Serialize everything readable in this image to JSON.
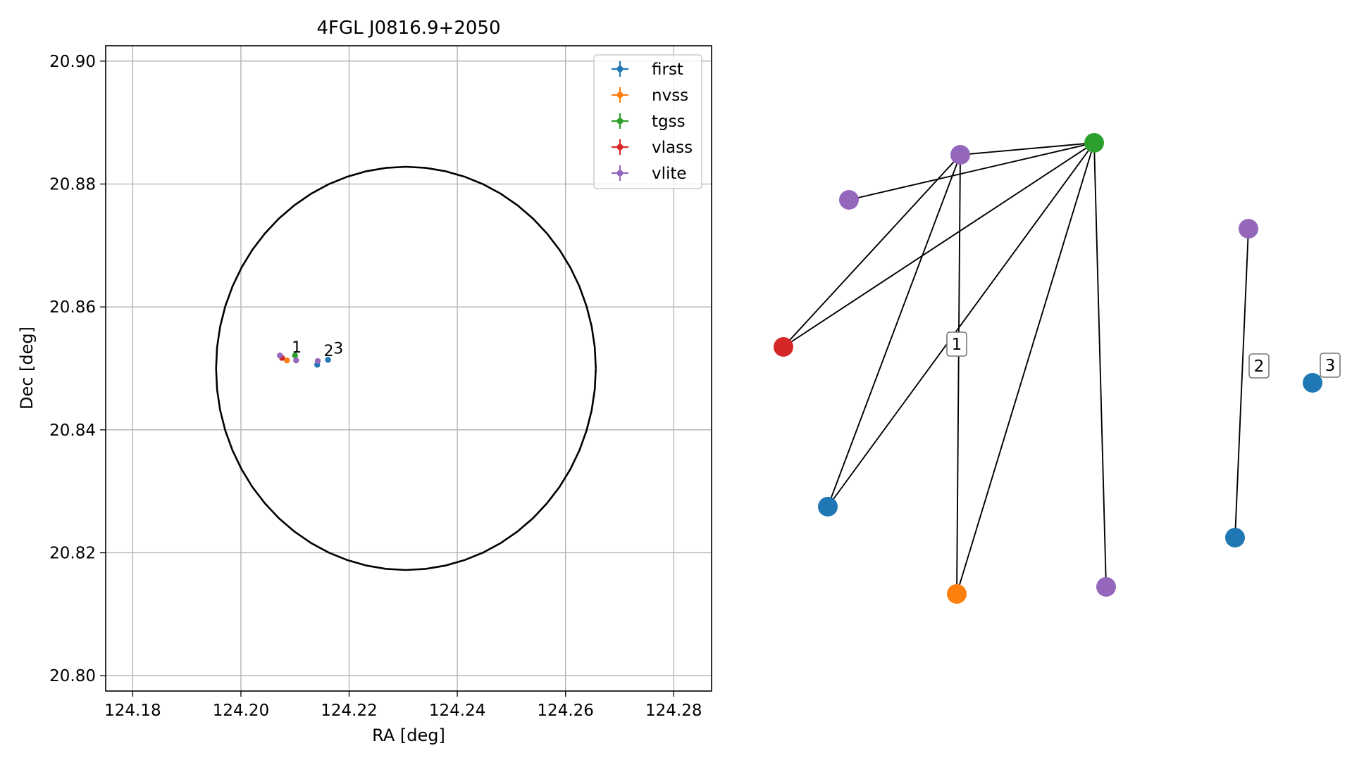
{
  "figure": {
    "background": "#ffffff"
  },
  "colors": {
    "first": "#1f77b4",
    "nvss": "#ff7f0e",
    "tgss": "#2ca02c",
    "vlass": "#d62728",
    "vlite": "#9467bd",
    "grid": "#b0b0b0",
    "edge": "#000000"
  },
  "chart_data": [
    {
      "type": "scatter",
      "title": "4FGL J0816.9+2050",
      "xlabel": "RA [deg]",
      "ylabel": "Dec [deg]",
      "xlim": [
        124.175,
        124.287
      ],
      "ylim": [
        20.7975,
        20.9025
      ],
      "xticks": [
        124.18,
        124.2,
        124.22,
        124.24,
        124.26,
        124.28
      ],
      "xtick_labels": [
        "124.18",
        "124.20",
        "124.22",
        "124.24",
        "124.26",
        "124.28"
      ],
      "yticks": [
        20.8,
        20.82,
        20.84,
        20.86,
        20.88,
        20.9
      ],
      "ytick_labels": [
        "20.80",
        "20.82",
        "20.84",
        "20.86",
        "20.88",
        "20.90"
      ],
      "grid": true,
      "legend_position": "top-right",
      "series": [
        {
          "name": "first",
          "points": [
            {
              "x": 124.2141,
              "y": 20.8506
            },
            {
              "x": 124.2161,
              "y": 20.8514
            }
          ]
        },
        {
          "name": "nvss",
          "points": [
            {
              "x": 124.2085,
              "y": 20.8513
            }
          ]
        },
        {
          "name": "tgss",
          "points": [
            {
              "x": 124.21,
              "y": 20.8521
            }
          ]
        },
        {
          "name": "vlass",
          "points": [
            {
              "x": 124.2076,
              "y": 20.8517
            }
          ]
        },
        {
          "name": "vlite",
          "points": [
            {
              "x": 124.2072,
              "y": 20.8521
            },
            {
              "x": 124.2102,
              "y": 20.8513
            },
            {
              "x": 124.2142,
              "y": 20.8512
            }
          ]
        }
      ],
      "circle": {
        "center_ra": 124.2305,
        "center_dec": 20.85,
        "radius_dec": 0.0328
      },
      "annotations": [
        {
          "text": "1",
          "x": 124.2094,
          "y": 20.8526
        },
        {
          "text": "2",
          "x": 124.2153,
          "y": 20.852
        },
        {
          "text": "3",
          "x": 124.2171,
          "y": 20.8524
        }
      ]
    },
    {
      "type": "network",
      "nodes": [
        {
          "id": "vl1",
          "catalog": "vlite"
        },
        {
          "id": "tg",
          "catalog": "tgss"
        },
        {
          "id": "vl2",
          "catalog": "vlite"
        },
        {
          "id": "vs",
          "catalog": "vlass"
        },
        {
          "id": "f1",
          "catalog": "first"
        },
        {
          "id": "nv",
          "catalog": "nvss"
        },
        {
          "id": "vl3",
          "catalog": "vlite"
        },
        {
          "id": "vl4",
          "catalog": "vlite"
        },
        {
          "id": "f2",
          "catalog": "first"
        },
        {
          "id": "f3",
          "catalog": "first"
        }
      ],
      "edges": [
        [
          "vl1",
          "tg"
        ],
        [
          "vl2",
          "tg"
        ],
        [
          "vl2",
          "vs"
        ],
        [
          "vl2",
          "f1"
        ],
        [
          "vl2",
          "nv"
        ],
        [
          "tg",
          "vs"
        ],
        [
          "tg",
          "f1"
        ],
        [
          "tg",
          "nv"
        ],
        [
          "tg",
          "vl3"
        ],
        [
          "vl4",
          "f2"
        ]
      ],
      "group_labels": [
        "1",
        "2",
        "3"
      ]
    }
  ]
}
